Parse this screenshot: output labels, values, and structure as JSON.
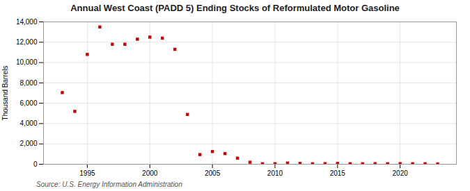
{
  "chart_data": {
    "type": "scatter",
    "title": "Annual West Coast (PADD 5) Ending Stocks of Reformulated Motor Gasoline",
    "ylabel": "Thousand Barrels",
    "source": "Source: U.S. Energy Information Administration",
    "x": [
      1993,
      1994,
      1995,
      1996,
      1997,
      1998,
      1999,
      2000,
      2001,
      2002,
      2003,
      2004,
      2005,
      2006,
      2007,
      2008,
      2009,
      2010,
      2011,
      2012,
      2013,
      2014,
      2015,
      2016,
      2017,
      2018,
      2019,
      2020,
      2021,
      2022,
      2023
    ],
    "values": [
      7050,
      5200,
      10800,
      13500,
      11800,
      11800,
      12300,
      12500,
      12400,
      11300,
      4900,
      950,
      1250,
      1050,
      600,
      200,
      50,
      50,
      120,
      80,
      50,
      60,
      80,
      50,
      50,
      60,
      50,
      60,
      50,
      50,
      30
    ],
    "color": "#cc0000",
    "marker": "square",
    "grid": true,
    "xlim": [
      1991.5,
      2024.5
    ],
    "xticks": [
      1995,
      2000,
      2005,
      2010,
      2015,
      2020
    ],
    "ylim": [
      0,
      14000
    ],
    "yticks": [
      0,
      {
        "value": 2000,
        "label": "2,000"
      },
      {
        "value": 4000,
        "label": "4,000"
      },
      {
        "value": 6000,
        "label": "6,000"
      },
      {
        "value": 8000,
        "label": "8,000"
      },
      {
        "value": 10000,
        "label": "10,000"
      },
      {
        "value": 12000,
        "label": "12,000"
      },
      {
        "value": 14000,
        "label": "14,000"
      }
    ]
  }
}
